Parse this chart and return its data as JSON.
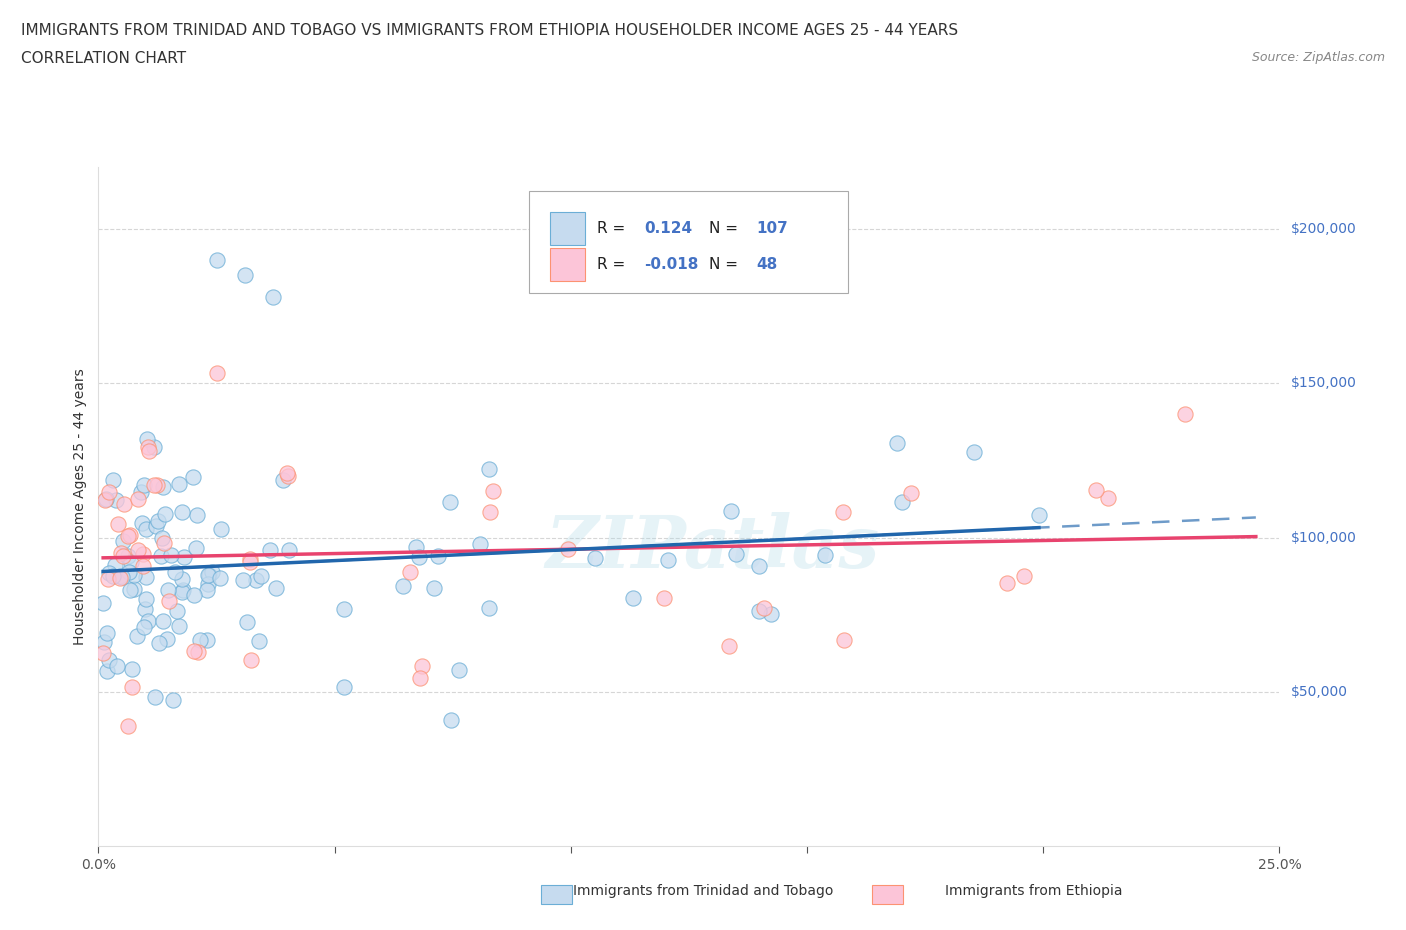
{
  "title_line1": "IMMIGRANTS FROM TRINIDAD AND TOBAGO VS IMMIGRANTS FROM ETHIOPIA HOUSEHOLDER INCOME AGES 25 - 44 YEARS",
  "title_line2": "CORRELATION CHART",
  "source_text": "Source: ZipAtlas.com",
  "ylabel": "Householder Income Ages 25 - 44 years",
  "xlim": [
    0.0,
    0.25
  ],
  "ylim": [
    0,
    220000
  ],
  "blue_R": 0.124,
  "blue_N": 107,
  "pink_R": -0.018,
  "pink_N": 48,
  "blue_edge_color": "#6baed6",
  "pink_edge_color": "#fc9272",
  "blue_fill_color": "#c6dbef",
  "pink_fill_color": "#fcc5d8",
  "blue_line_color": "#2166ac",
  "pink_line_color": "#e8436e",
  "right_label_color": "#4472c4",
  "legend_label_blue": "Immigrants from Trinidad and Tobago",
  "legend_label_pink": "Immigrants from Ethiopia",
  "background_color": "#ffffff",
  "grid_color": "#cccccc",
  "title_fontsize": 11,
  "tick_fontsize": 10
}
